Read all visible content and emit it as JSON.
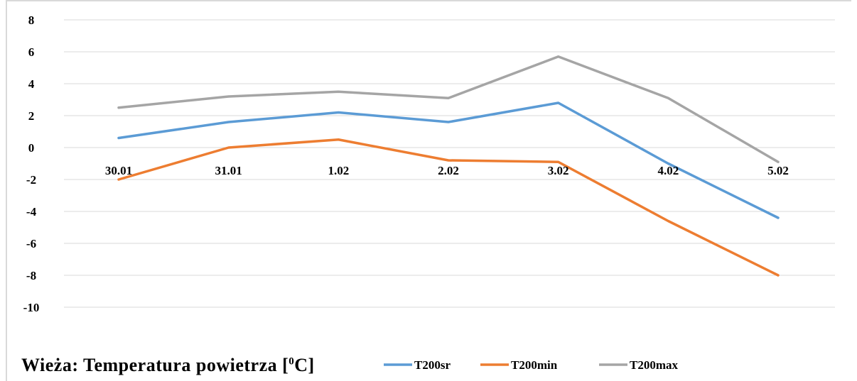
{
  "chart_data": {
    "type": "line",
    "title_prefix": "Wieża: Temperatura powietrza [",
    "title_sup": "0",
    "title_suffix": "C]",
    "categories": [
      "30.01",
      "31.01",
      "1.02",
      "2.02",
      "3.02",
      "4.02",
      "5.02"
    ],
    "ylim": [
      -10,
      8
    ],
    "yticks": [
      8,
      6,
      4,
      2,
      0,
      -2,
      -4,
      -6,
      -8,
      -10
    ],
    "grid": true,
    "legend_position": "bottom",
    "series": [
      {
        "name": "T200sr",
        "color": "#5b9bd5",
        "values": [
          0.6,
          1.6,
          2.2,
          1.6,
          2.8,
          -1.0,
          -4.4
        ]
      },
      {
        "name": "T200min",
        "color": "#ed7d31",
        "values": [
          -2.0,
          0.0,
          0.5,
          -0.8,
          -0.9,
          -4.6,
          -8.0
        ]
      },
      {
        "name": "T200max",
        "color": "#a5a5a5",
        "values": [
          2.5,
          3.2,
          3.5,
          3.1,
          5.7,
          3.1,
          -0.9
        ]
      }
    ]
  }
}
